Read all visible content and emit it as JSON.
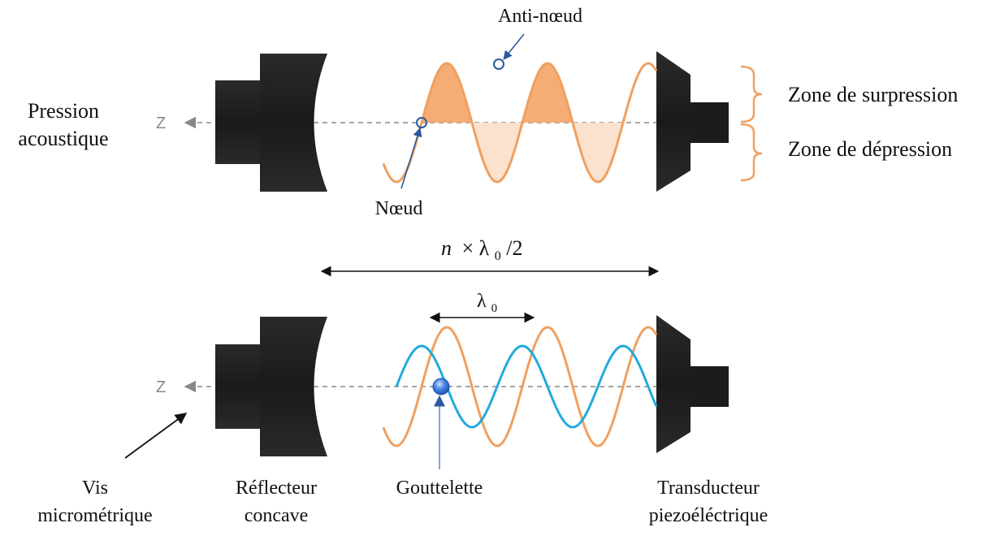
{
  "labels": {
    "pression_line1": "Pression",
    "pression_line2": "acoustique",
    "axis_top": "Z",
    "axis_bottom": "Z",
    "anti_noeud": "Anti-nœud",
    "noeud": "Nœud",
    "zone_surpression": "Zone de surpression",
    "zone_depression": "Zone de dépression",
    "distance_n": "n",
    "distance_rest": "× λ",
    "distance_sub": "0",
    "distance_tail": "/2",
    "lambda": "λ",
    "lambda_sub": "0",
    "vis_line1": "Vis",
    "vis_line2": "micrométrique",
    "reflecteur_line1": "Réflecteur",
    "reflecteur_line2": "concave",
    "gouttelette": "Gouttelette",
    "transducteur_line1": "Transducteur",
    "transducteur_line2": "piezoéléctrique",
    "plus": "+",
    "minus": "-"
  },
  "colors": {
    "orange_wave": "#f0a060",
    "orange_fill": "#f4a466",
    "orange_light_fill": "#fbe0cc",
    "blue_wave": "#22aadd",
    "axis_dashed": "#888888",
    "device_dark": "#1b1b1b",
    "device_mid": "#2e2e2e",
    "annotation_blue": "#2a5aa0",
    "droplet": "#3a7be0"
  }
}
